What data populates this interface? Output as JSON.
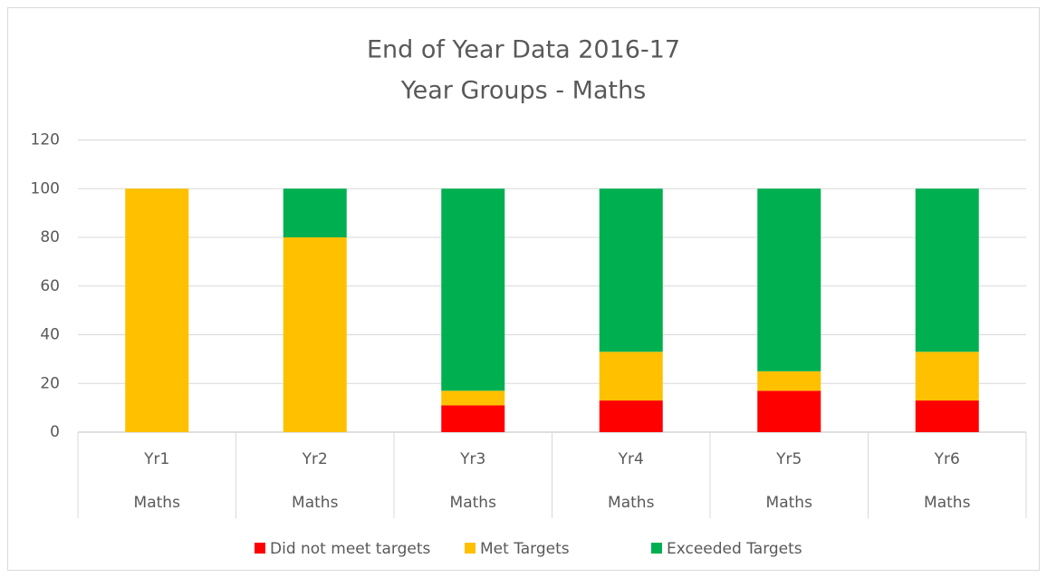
{
  "chart_data": {
    "type": "stacked_bar",
    "title": "End of Year Data 2016-17",
    "subtitle": "Year Groups - Maths",
    "categories": [
      "Yr1",
      "Yr2",
      "Yr3",
      "Yr4",
      "Yr5",
      "Yr6"
    ],
    "category_groups": [
      "Maths",
      "Maths",
      "Maths",
      "Maths",
      "Maths",
      "Maths"
    ],
    "series": [
      {
        "name": "Did not meet targets",
        "color": "#ff0000",
        "values": [
          0,
          0,
          11,
          13,
          17,
          13
        ]
      },
      {
        "name": "Met Targets",
        "color": "#ffc000",
        "values": [
          100,
          80,
          6,
          20,
          8,
          20
        ]
      },
      {
        "name": "Exceeded Targets",
        "color": "#00b050",
        "values": [
          0,
          20,
          83,
          67,
          75,
          67
        ]
      }
    ],
    "ylim": [
      0,
      120
    ],
    "yticks": [
      0,
      20,
      40,
      60,
      80,
      100,
      120
    ],
    "grid": true,
    "legend": "bottom"
  }
}
